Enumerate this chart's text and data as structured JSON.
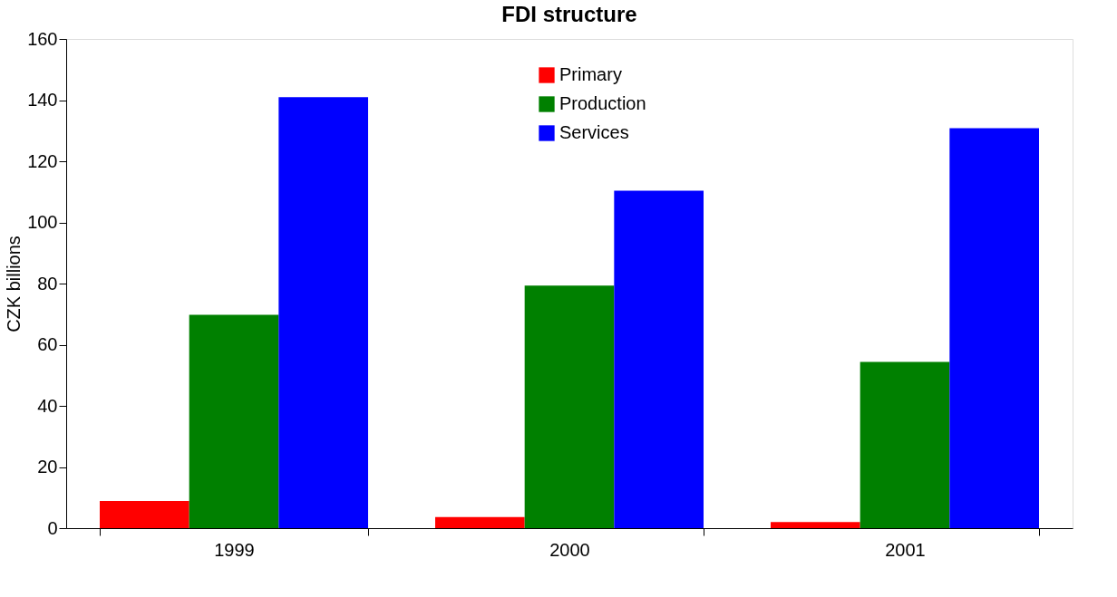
{
  "chart_data": {
    "type": "bar",
    "title": "FDI structure",
    "ylabel": "CZK billions",
    "categories": [
      "1999",
      "2000",
      "2001"
    ],
    "series": [
      {
        "name": "Primary",
        "color": "#ff0000",
        "values": [
          8.9,
          3.6,
          2.0
        ]
      },
      {
        "name": "Production",
        "color": "#008000",
        "values": [
          69.8,
          79.3,
          54.4
        ]
      },
      {
        "name": "Services",
        "color": "#0000ff",
        "values": [
          141,
          110.4,
          130.8
        ]
      }
    ],
    "ylim": [
      0,
      160
    ],
    "yticks": [
      0,
      20,
      40,
      60,
      80,
      100,
      120,
      140,
      160
    ],
    "grid": false,
    "legend": "top"
  }
}
